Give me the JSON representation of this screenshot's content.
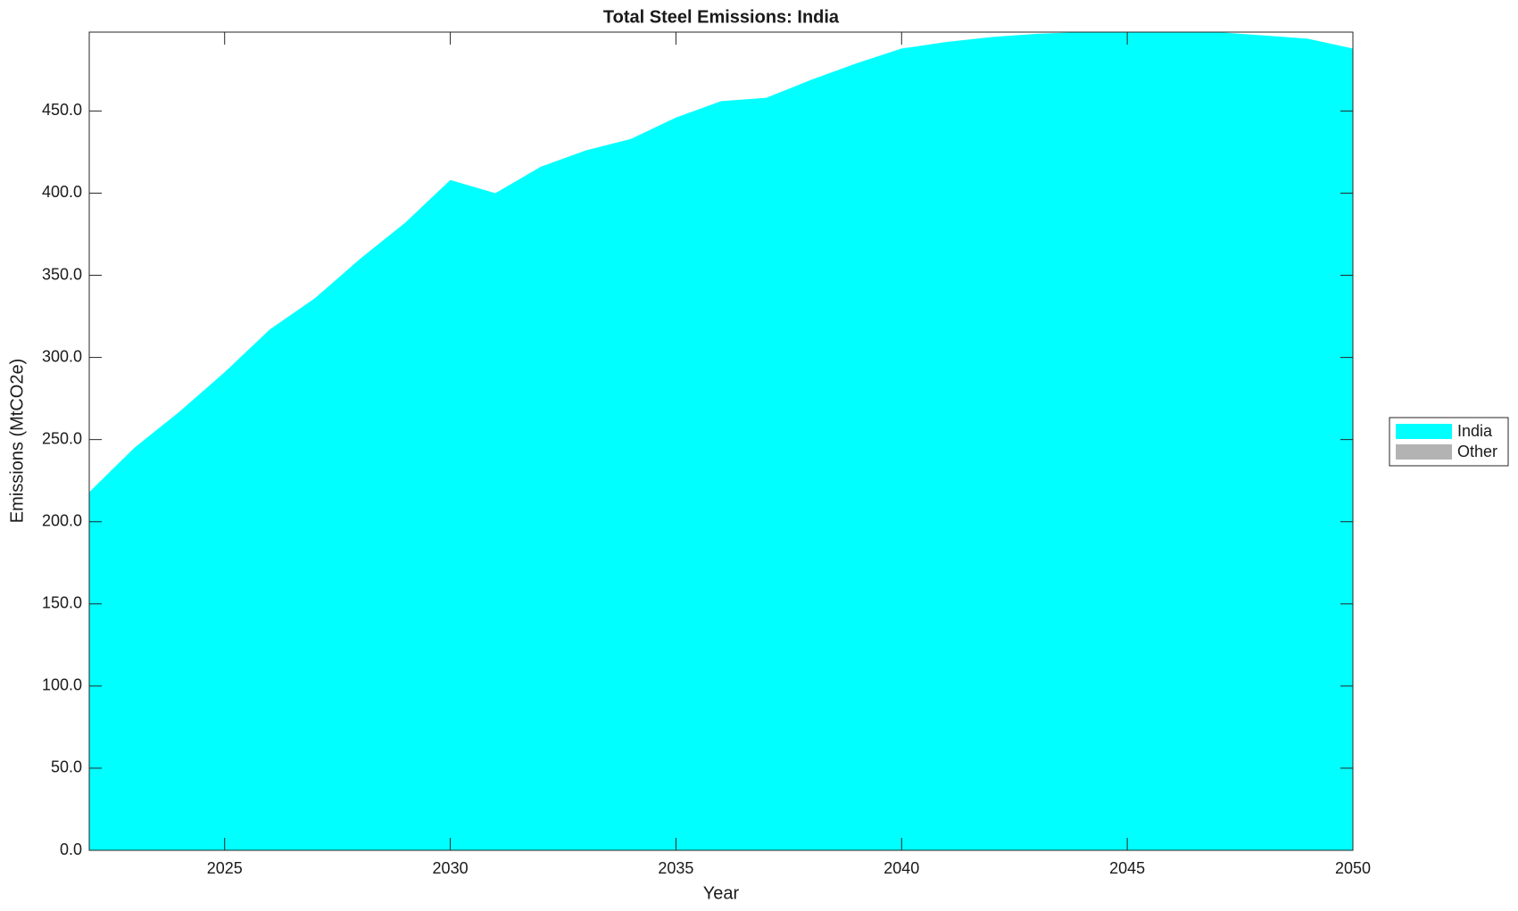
{
  "chart_data": {
    "type": "area",
    "title": "Total Steel Emissions: India",
    "x_label": "Year",
    "y_label": "Emissions (MtCO2e)",
    "x": [
      2022,
      2023,
      2024,
      2025,
      2026,
      2027,
      2028,
      2029,
      2030,
      2031,
      2032,
      2033,
      2034,
      2035,
      2036,
      2037,
      2038,
      2039,
      2040,
      2041,
      2042,
      2043,
      2044,
      2045,
      2046,
      2047,
      2048,
      2049,
      2050
    ],
    "series": [
      {
        "name": "India",
        "color": "#00ffff",
        "values": [
          218,
          245,
          267,
          291,
          317,
          336,
          360,
          382,
          408,
          400,
          416,
          426,
          433,
          446,
          456,
          458,
          469,
          479,
          488,
          492,
          495,
          497,
          498,
          498,
          498,
          498,
          496,
          494,
          488
        ]
      },
      {
        "name": "Other",
        "color": "#b3b3b3",
        "values": [
          0,
          0,
          0,
          0,
          0,
          0,
          0,
          0,
          0,
          0,
          0,
          0,
          0,
          0,
          0,
          0,
          0,
          0,
          0,
          0,
          0,
          0,
          0,
          0,
          0,
          0,
          0,
          0,
          0
        ]
      }
    ],
    "xlim": [
      2022,
      2050
    ],
    "xticks": [
      2025,
      2030,
      2035,
      2040,
      2045,
      2050
    ],
    "ylim": [
      0,
      498
    ],
    "yticks": [
      {
        "value": 0,
        "label": "0.0"
      },
      {
        "value": 50,
        "label": "50.0"
      },
      {
        "value": 100,
        "label": "100.0"
      },
      {
        "value": 150,
        "label": "150.0"
      },
      {
        "value": 200,
        "label": "200.0"
      },
      {
        "value": 250,
        "label": "250.0"
      },
      {
        "value": 300,
        "label": "300.0"
      },
      {
        "value": 350,
        "label": "350.0"
      },
      {
        "value": 400,
        "label": "400.0"
      },
      {
        "value": 450,
        "label": "450.0"
      }
    ],
    "stacked": true,
    "legend": "outside-right"
  }
}
